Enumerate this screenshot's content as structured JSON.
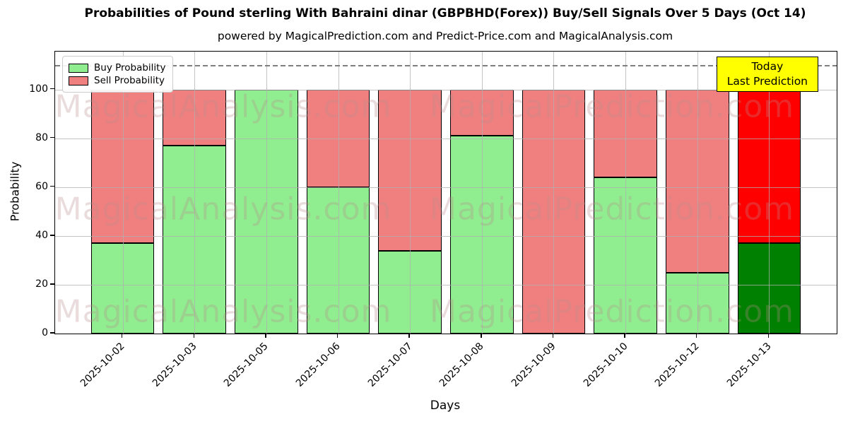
{
  "title": "Probabilities of Pound sterling With Bahraini dinar (GBPBHD(Forex)) Buy/Sell Signals Over 5 Days (Oct 14)",
  "subtitle": "powered by MagicalPrediction.com and Predict-Price.com and MagicalAnalysis.com",
  "axes": {
    "x_label": "Days",
    "y_label": "Probability",
    "y_ticks": [
      0,
      20,
      40,
      60,
      80,
      100
    ]
  },
  "legend": [
    {
      "label": "Buy Probability",
      "color": "#90EE90"
    },
    {
      "label": "Sell Probability",
      "color": "#F08080"
    }
  ],
  "annotation": {
    "line1": "Today",
    "line2": "Last Prediction",
    "bg": "#FFFF00",
    "border": "#000000"
  },
  "watermarks": {
    "left": "MagicalAnalysis.com",
    "right": "MagicalPrediction.com"
  },
  "chart_data": {
    "type": "bar",
    "stacked": true,
    "title": "Probabilities of Pound sterling With Bahraini dinar (GBPBHD(Forex)) Buy/Sell Signals Over 5 Days (Oct 14)",
    "xlabel": "Days",
    "ylabel": "Probability",
    "categories": [
      "2025-10-02",
      "2025-10-03",
      "2025-10-05",
      "2025-10-06",
      "2025-10-07",
      "2025-10-08",
      "2025-10-09",
      "2025-10-10",
      "2025-10-12",
      "2025-10-13"
    ],
    "series": [
      {
        "name": "Buy Probability",
        "color": "#90EE90",
        "today_color": "#008000",
        "values": [
          37,
          77,
          100,
          60,
          34,
          81,
          0,
          64,
          25,
          37
        ]
      },
      {
        "name": "Sell Probability",
        "color": "#F08080",
        "today_color": "#FF0000",
        "values": [
          63,
          23,
          0,
          40,
          66,
          19,
          100,
          36,
          75,
          63
        ]
      }
    ],
    "today_index": 9,
    "ylim": [
      0,
      115.5
    ],
    "reference_line_y": 110,
    "grid": true,
    "legend_position": "upper left"
  }
}
